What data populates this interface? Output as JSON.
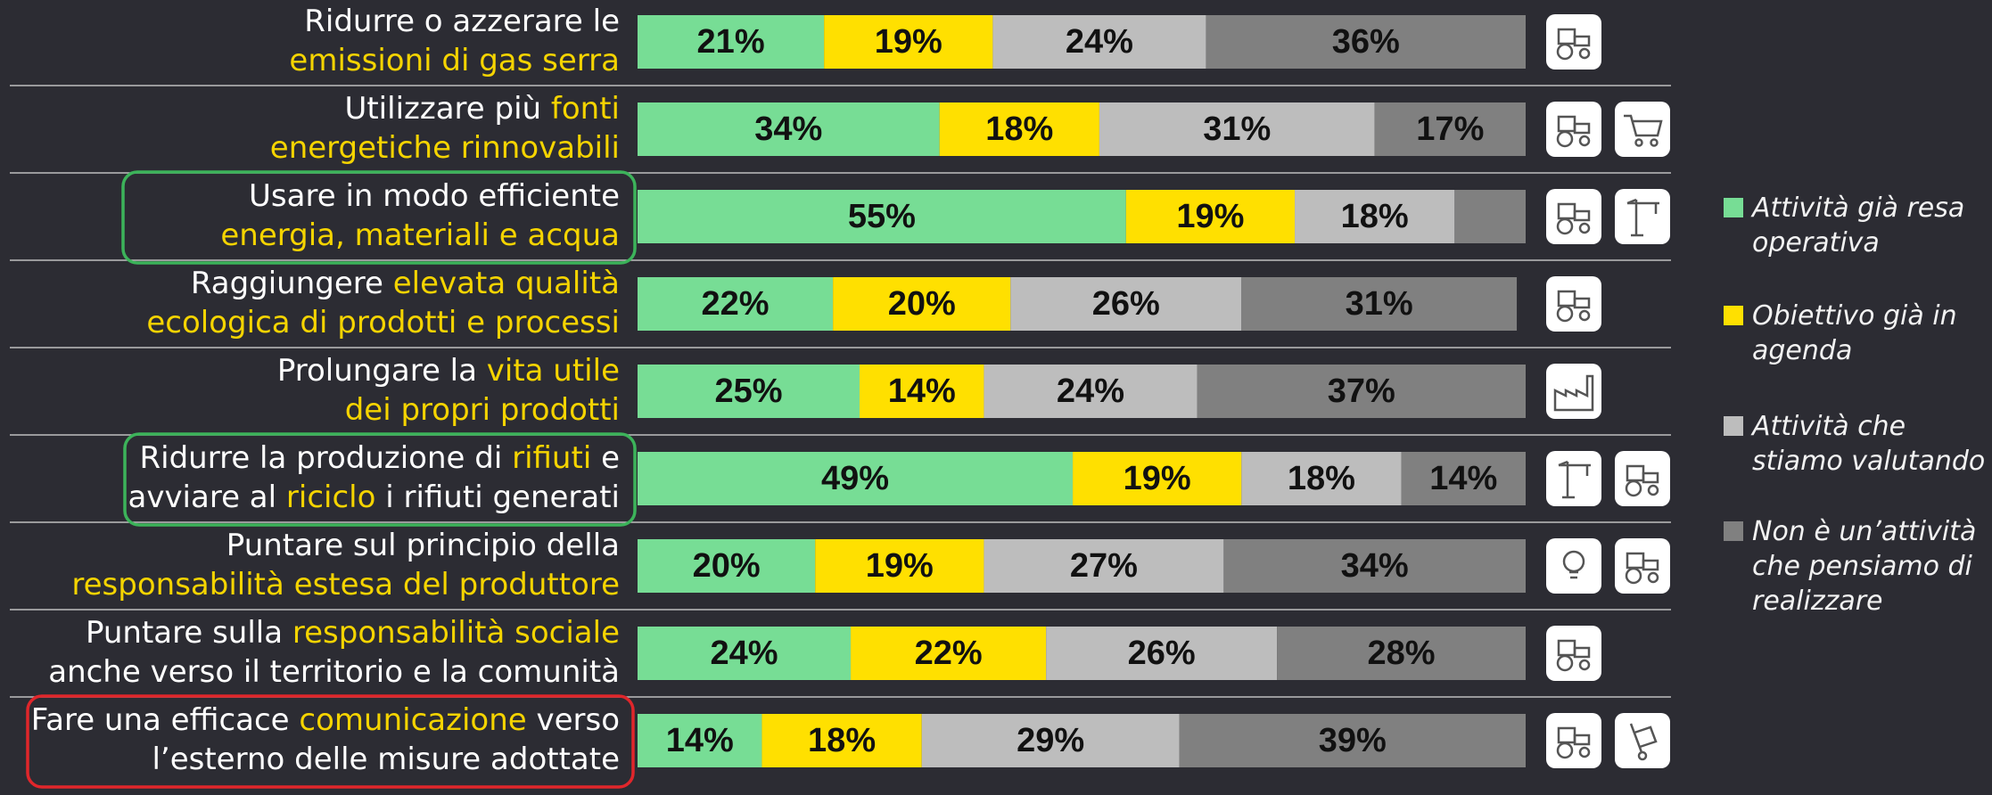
{
  "chart_data": {
    "type": "stacked-bar-horizontal",
    "categories": [
      [
        [
          {
            "text": "Ridurre o azzerare le",
            "color": "#ffffff"
          }
        ],
        [
          {
            "text": "emissioni di gas serra",
            "color": "#f5d400"
          }
        ]
      ],
      [
        [
          {
            "text": "Utilizzare più ",
            "color": "#ffffff"
          },
          {
            "text": "fonti",
            "color": "#f5d400"
          }
        ],
        [
          {
            "text": "energetiche rinnovabili",
            "color": "#f5d400"
          }
        ]
      ],
      [
        [
          {
            "text": "Usare in modo efficiente",
            "color": "#ffffff"
          }
        ],
        [
          {
            "text": "energia, materiali e acqua",
            "color": "#f5d400"
          }
        ]
      ],
      [
        [
          {
            "text": "Raggiungere ",
            "color": "#ffffff"
          },
          {
            "text": "elevata qualità",
            "color": "#f5d400"
          }
        ],
        [
          {
            "text": "ecologica di prodotti e processi",
            "color": "#f5d400"
          }
        ]
      ],
      [
        [
          {
            "text": "Prolungare la ",
            "color": "#ffffff"
          },
          {
            "text": "vita utile",
            "color": "#f5d400"
          }
        ],
        [
          {
            "text": "dei propri prodotti",
            "color": "#f5d400"
          }
        ]
      ],
      [
        [
          {
            "text": "Ridurre la produzione di ",
            "color": "#ffffff"
          },
          {
            "text": "rifiuti",
            "color": "#f5d400"
          },
          {
            "text": " e",
            "color": "#ffffff"
          }
        ],
        [
          {
            "text": "avviare al ",
            "color": "#ffffff"
          },
          {
            "text": "riciclo",
            "color": "#f5d400"
          },
          {
            "text": " i rifiuti generati",
            "color": "#ffffff"
          }
        ]
      ],
      [
        [
          {
            "text": "Puntare sul principio della",
            "color": "#ffffff"
          }
        ],
        [
          {
            "text": "responsabilità estesa del produttore",
            "color": "#f5d400"
          }
        ]
      ],
      [
        [
          {
            "text": "Puntare sulla ",
            "color": "#ffffff"
          },
          {
            "text": "responsabilità sociale",
            "color": "#f5d400"
          }
        ],
        [
          {
            "text": "anche verso il territorio e la comunità",
            "color": "#ffffff"
          }
        ]
      ],
      [
        [
          {
            "text": "Fare una efficace ",
            "color": "#ffffff"
          },
          {
            "text": "comunicazione",
            "color": "#f5d400"
          },
          {
            "text": " verso",
            "color": "#ffffff"
          }
        ],
        [
          {
            "text": "l’esterno delle misure adottate",
            "color": "#ffffff"
          }
        ]
      ]
    ],
    "xlim": [
      0,
      100
    ],
    "series": [
      {
        "name": "Attività già resa operativa",
        "color": "#77dd95",
        "values": [
          21,
          34,
          55,
          22,
          25,
          49,
          20,
          24,
          14
        ],
        "value_labels": [
          "21%",
          "34%",
          "55%",
          "22%",
          "25%",
          "49%",
          "20%",
          "24%",
          "14%"
        ]
      },
      {
        "name": "Obiettivo già in agenda",
        "color": "#ffe000",
        "values": [
          19,
          18,
          19,
          20,
          14,
          19,
          19,
          22,
          18
        ],
        "value_labels": [
          "19%",
          "18%",
          "19%",
          "20%",
          "14%",
          "19%",
          "19%",
          "22%",
          "18%"
        ]
      },
      {
        "name": "Attività che stiamo valutando",
        "color": "#bdbdbd",
        "values": [
          24,
          31,
          18,
          26,
          24,
          18,
          27,
          26,
          29
        ],
        "value_labels": [
          "24%",
          "31%",
          "18%",
          "26%",
          "24%",
          "18%",
          "27%",
          "26%",
          "29%"
        ]
      },
      {
        "name": "Non è un’attività che pensiamo di realizzare",
        "color": "#808080",
        "values": [
          36,
          17,
          8,
          31,
          37,
          14,
          34,
          28,
          39
        ],
        "value_labels": [
          "36%",
          "17%",
          null,
          "31%",
          "37%",
          "14%",
          "34%",
          "28%",
          "39%"
        ]
      }
    ]
  }
}
